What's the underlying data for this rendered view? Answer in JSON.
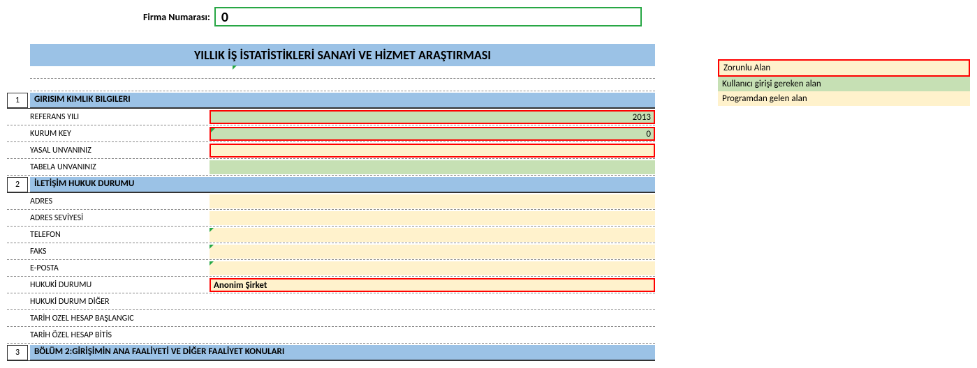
{
  "firma": {
    "label": "Firma Numarası:",
    "value": "0"
  },
  "title": "YILLIK İŞ İSTATİSTİKLERİ SANAYİ VE HİZMET ARAŞTIRMASI",
  "sections": {
    "s1": {
      "num": "1",
      "title": "GIRISIM KIMLIK BILGILERI"
    },
    "s2": {
      "num": "2",
      "title": "İLETİŞİM HUKUK DURUMU"
    },
    "s3": {
      "num": "3",
      "title": "BÖLÜM 2:GİRİŞİMİN ANA FAALİYETİ VE DİĞER FAALİYET KONULARI"
    }
  },
  "fields": {
    "referans_yili": {
      "label": "REFERANS YILI",
      "value": "2013"
    },
    "kurum_key": {
      "label": "KURUM KEY",
      "value": "0"
    },
    "yasal_unvan": {
      "label": "YASAL UNVANINIZ",
      "value": ""
    },
    "tabela_unvan": {
      "label": "TABELA UNVANINIZ",
      "value": ""
    },
    "adres": {
      "label": "ADRES",
      "value": ""
    },
    "adres_seviye": {
      "label": "ADRES SEVİYESİ",
      "value": ""
    },
    "telefon": {
      "label": "TELEFON",
      "value": ""
    },
    "faks": {
      "label": "FAKS",
      "value": ""
    },
    "eposta": {
      "label": "E-POSTA",
      "value": ""
    },
    "hukuki_durum": {
      "label": "HUKUKİ DURUMU",
      "value": "Anonim Şirket"
    },
    "hukuki_durum_diger": {
      "label": "HUKUKİ DURUM DİĞER",
      "value": ""
    },
    "tarih_baslangic": {
      "label": "TARİH OZEL HESAP BAŞLANGIC",
      "value": ""
    },
    "tarih_bitis": {
      "label": "TARİH ÖZEL HESAP BİTİS",
      "value": ""
    }
  },
  "legend": {
    "zorunlu": "Zorunlu Alan",
    "kullanici": "Kullanıcı girişi gereken alan",
    "program": "Programdan gelen alan"
  },
  "colors": {
    "header_blue": "#9bc2e6",
    "green_fill": "#c6e0b4",
    "cream_fill": "#fff2cc",
    "red_border": "#ff0000",
    "tri_green": "#28a745"
  }
}
